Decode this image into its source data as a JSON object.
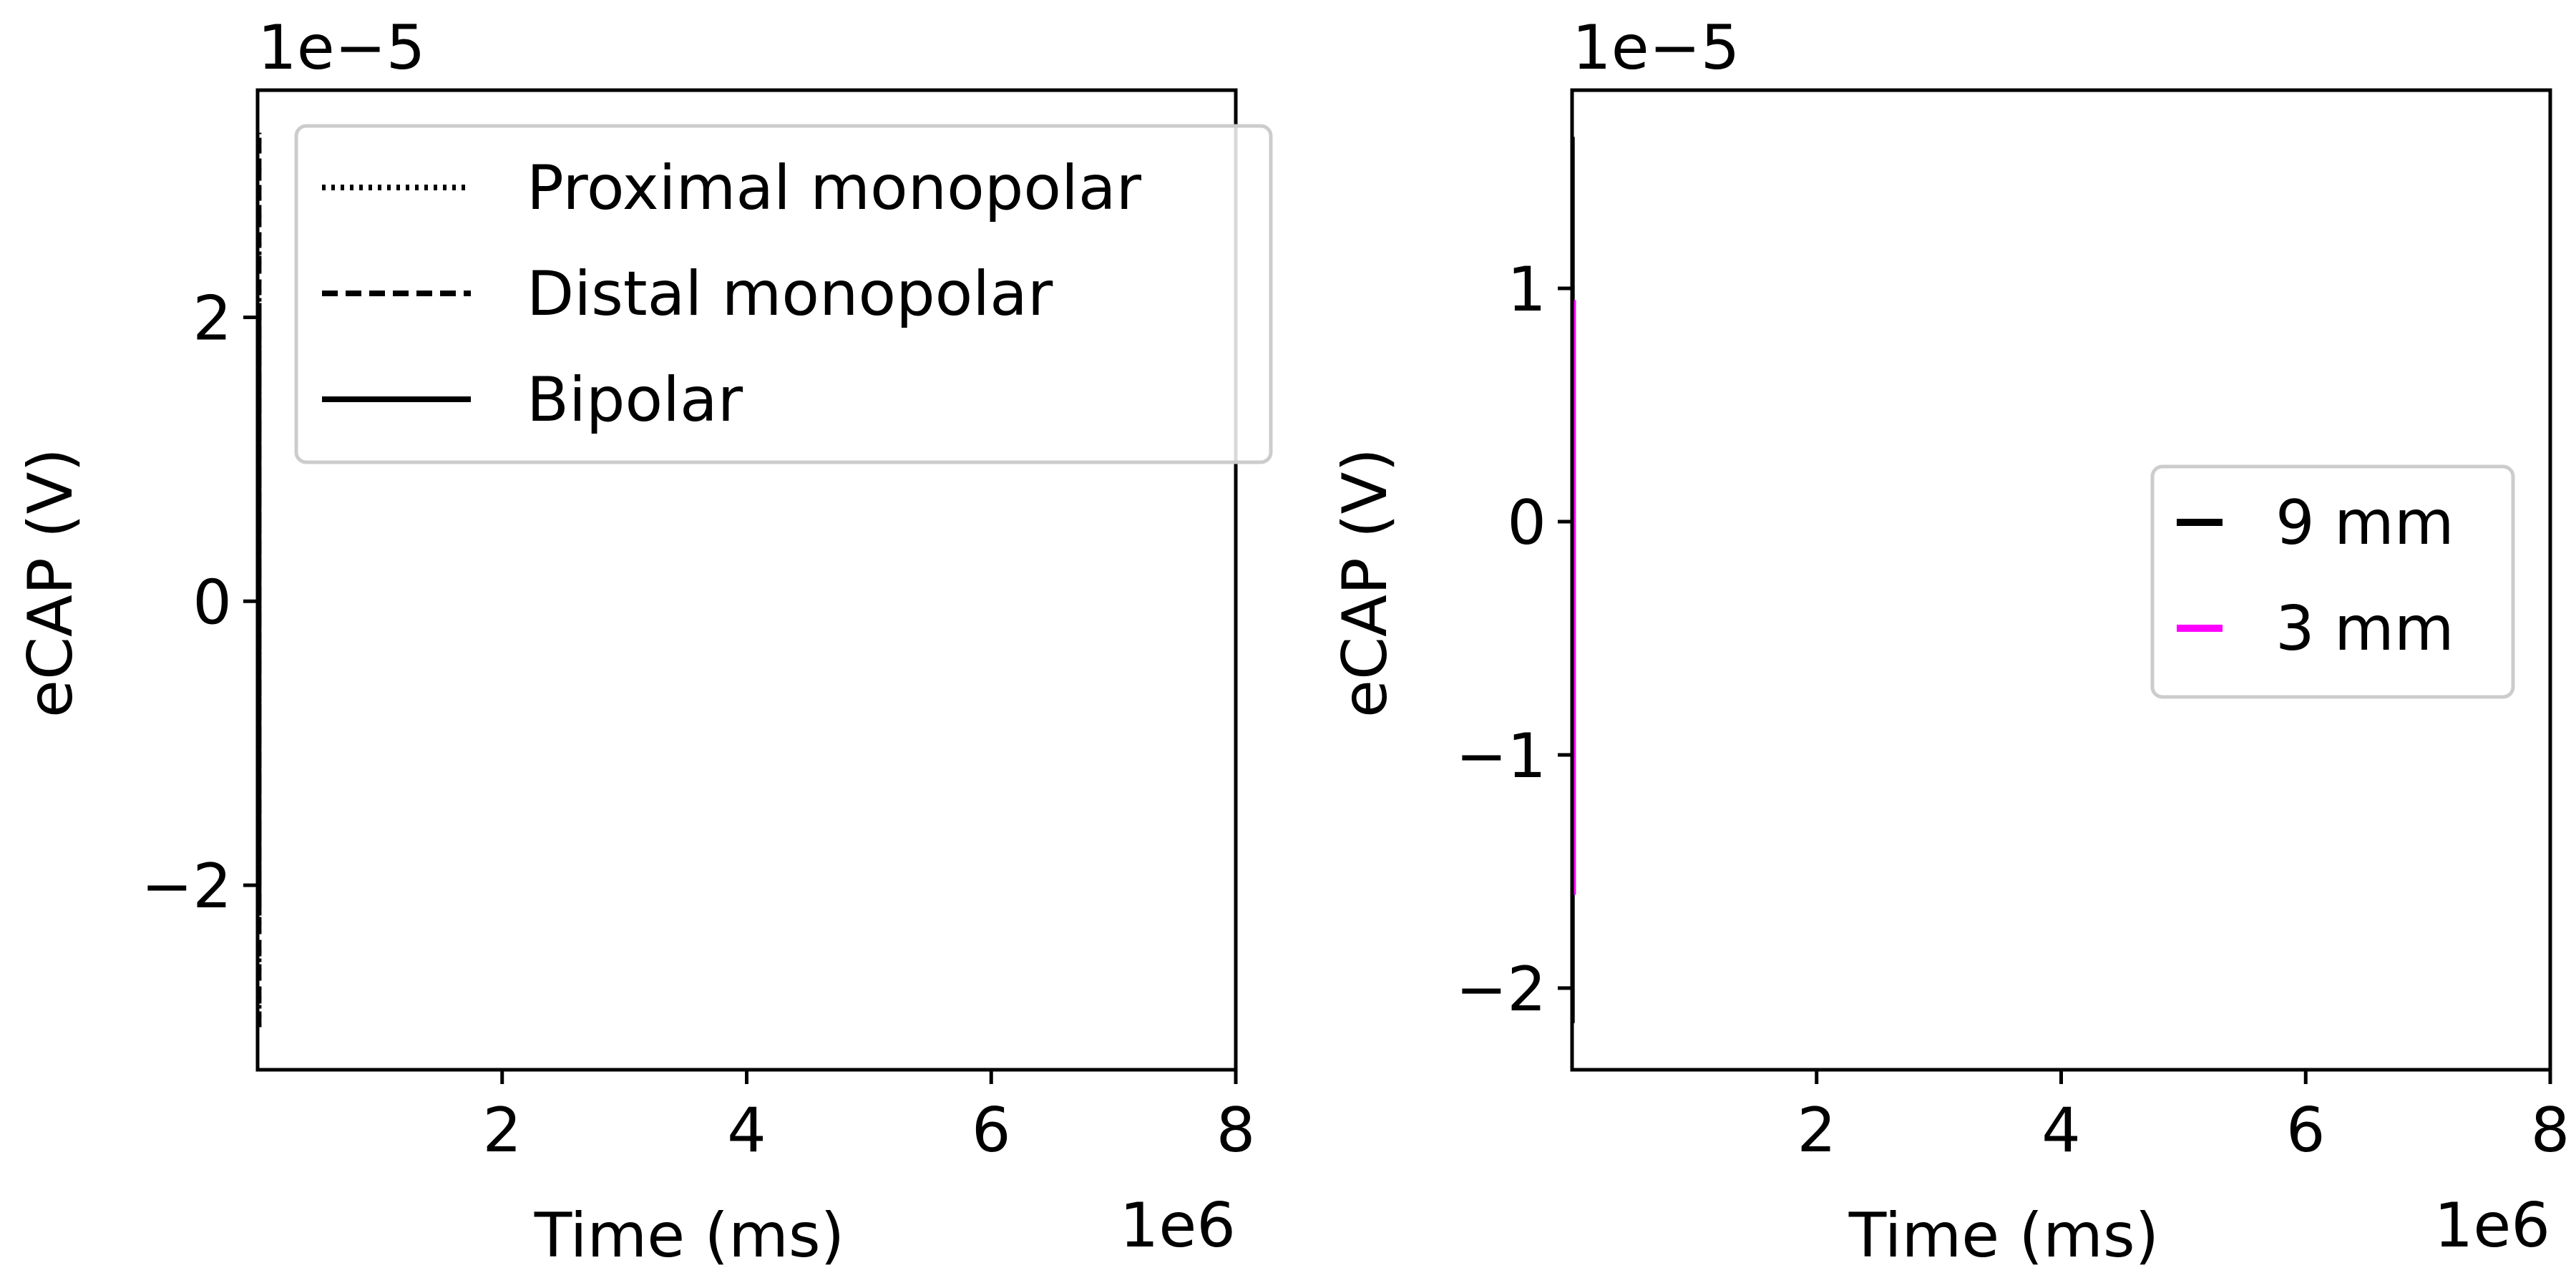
{
  "chart_data": [
    {
      "type": "line",
      "xlabel": "Time (ms)",
      "ylabel": "eCAP (V)",
      "x_offset_label": "1e6",
      "y_offset_label": "1e−5",
      "xlim": [
        0,
        8
      ],
      "ylim": [
        -3.3,
        3.6
      ],
      "xticks": [
        2,
        4,
        6,
        8
      ],
      "xtick_labels": [
        "2",
        "4",
        "6",
        "8"
      ],
      "yticks": [
        -2,
        0,
        2
      ],
      "ytick_labels": [
        "−2",
        "0",
        "2"
      ],
      "grid": false,
      "legend_position": "top",
      "series": [
        {
          "name": "Proximal monopolar",
          "color": "#000000",
          "style": "dotted",
          "x": [
            0.02,
            0.02
          ],
          "y": [
            -3.0,
            3.3
          ]
        },
        {
          "name": "Distal monopolar",
          "color": "#000000",
          "style": "dashed",
          "x": [
            0.02,
            0.02
          ],
          "y": [
            -3.0,
            3.3
          ]
        },
        {
          "name": "Bipolar",
          "color": "#000000",
          "style": "solid",
          "x": [
            0.02,
            0.02
          ],
          "y": [
            -2.2,
            2.1
          ]
        }
      ]
    },
    {
      "type": "line",
      "xlabel": "Time (ms)",
      "ylabel": "eCAP (V)",
      "x_offset_label": "1e6",
      "y_offset_label": "1e−5",
      "xlim": [
        0,
        8
      ],
      "ylim": [
        -2.35,
        1.85
      ],
      "xticks": [
        2,
        4,
        6,
        8
      ],
      "xtick_labels": [
        "2",
        "4",
        "6",
        "8"
      ],
      "yticks": [
        -2,
        -1,
        0,
        1
      ],
      "ytick_labels": [
        "−2",
        "−1",
        "0",
        "1"
      ],
      "grid": false,
      "legend_position": "center-right",
      "series": [
        {
          "name": "9 mm",
          "color": "#000000",
          "style": "solid",
          "x": [
            0.01,
            0.01
          ],
          "y": [
            -2.15,
            1.65
          ]
        },
        {
          "name": "3 mm",
          "color": "#ff00ff",
          "style": "solid",
          "x": [
            0.02,
            0.02
          ],
          "y": [
            -1.6,
            0.95
          ]
        }
      ]
    }
  ]
}
